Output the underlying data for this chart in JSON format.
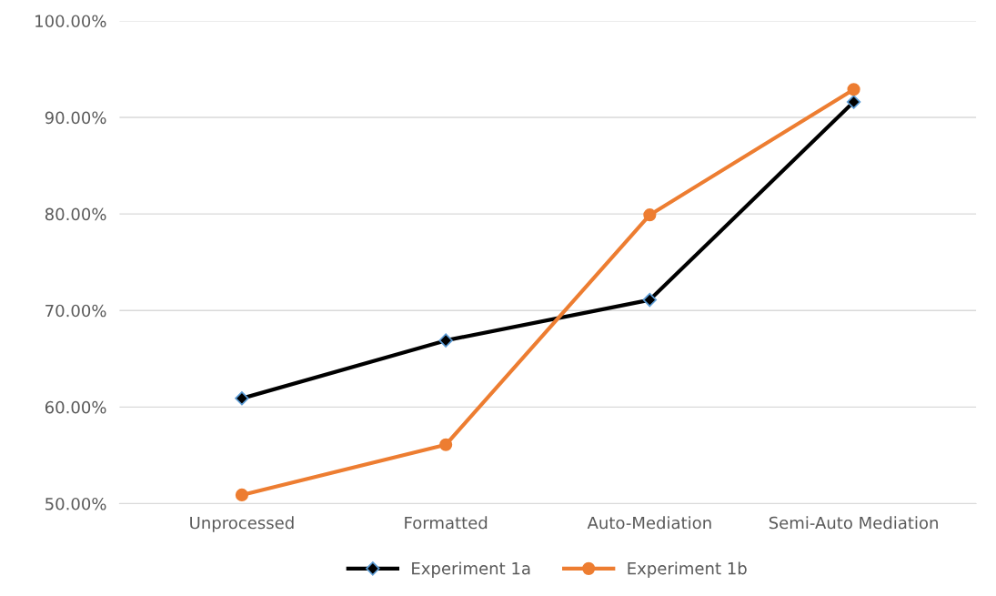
{
  "chart_data": {
    "type": "line",
    "categories": [
      "Unprocessed",
      "Formatted",
      "Auto-Mediation",
      "Semi-Auto Mediation"
    ],
    "series": [
      {
        "name": "Experiment 1a",
        "color": "#000000",
        "marker": "diamond",
        "values": [
          60.9,
          66.9,
          71.1,
          91.6
        ]
      },
      {
        "name": "Experiment 1b",
        "color": "#ed7d31",
        "marker": "circle",
        "values": [
          50.9,
          56.1,
          79.9,
          92.9
        ]
      }
    ],
    "ylim": [
      50,
      100
    ],
    "yticks": [
      {
        "value": 50,
        "label": "50.00%"
      },
      {
        "value": 60,
        "label": "60.00%"
      },
      {
        "value": 70,
        "label": "70.00%"
      },
      {
        "value": 80,
        "label": "80.00%"
      },
      {
        "value": 90,
        "label": "90.00%"
      },
      {
        "value": 100,
        "label": "100.00%"
      }
    ],
    "grid": "y",
    "legend": "bottom",
    "line_style": "solid"
  }
}
